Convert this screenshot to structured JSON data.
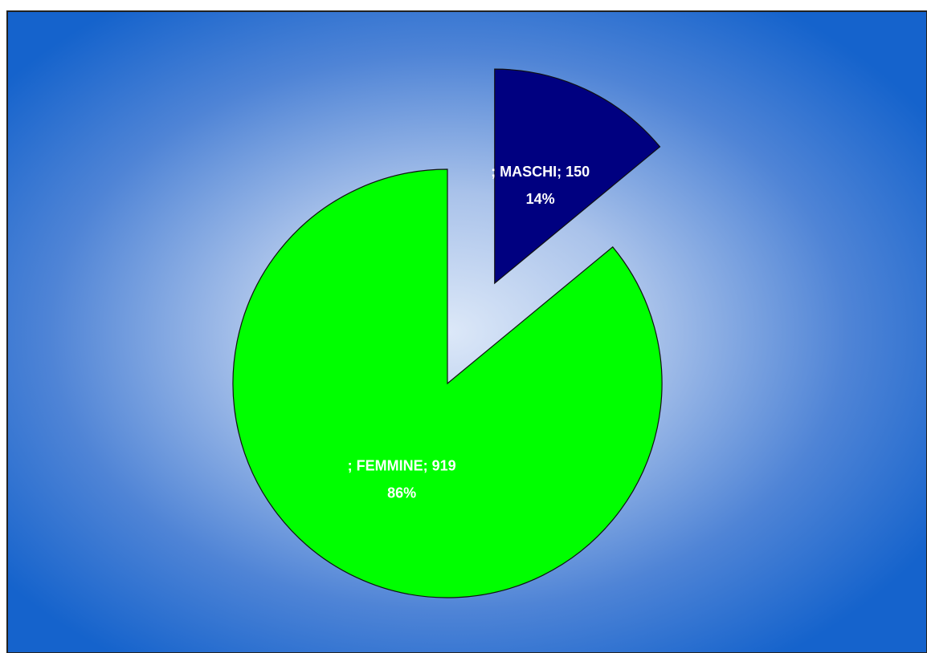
{
  "chart_data": {
    "type": "pie",
    "labels": [
      "; MASCHI; 150",
      "; FEMMINE; 919"
    ],
    "values": [
      14,
      86
    ],
    "value_labels": [
      "14%",
      "86%"
    ],
    "colors": [
      "#000080",
      "#00ff00"
    ]
  }
}
